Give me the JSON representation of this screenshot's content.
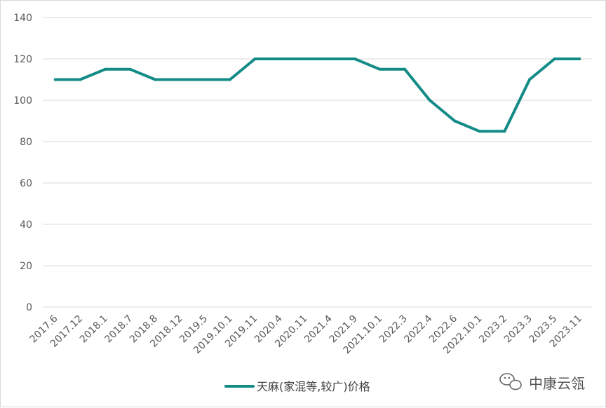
{
  "chart_data": {
    "type": "line",
    "title": "",
    "xlabel": "",
    "ylabel": "",
    "ylim": [
      0,
      140
    ],
    "yticks": [
      0,
      20,
      40,
      60,
      80,
      100,
      120,
      140
    ],
    "grid": true,
    "legend_position": "bottom",
    "categories": [
      "2017.6",
      "2017.12",
      "2018.1",
      "2018.7",
      "2018.8",
      "2018.12",
      "2019.5",
      "2019.10.1",
      "2019.11",
      "2020.4",
      "2020.11",
      "2021.4",
      "2021.9",
      "2021.10.1",
      "2022.3",
      "2022.4",
      "2022.6",
      "2022.10.1",
      "2023.2",
      "2023.3",
      "2023.5",
      "2023.11"
    ],
    "series": [
      {
        "name": "天麻(家混等,较广)价格",
        "color": "#138b86",
        "values": [
          110,
          110,
          115,
          115,
          110,
          110,
          110,
          110,
          120,
          120,
          120,
          120,
          120,
          115,
          115,
          100,
          90,
          85,
          85,
          110,
          120,
          120
        ]
      }
    ]
  },
  "watermark": {
    "text": "中康云瓴",
    "icon": "wechat-icon"
  }
}
